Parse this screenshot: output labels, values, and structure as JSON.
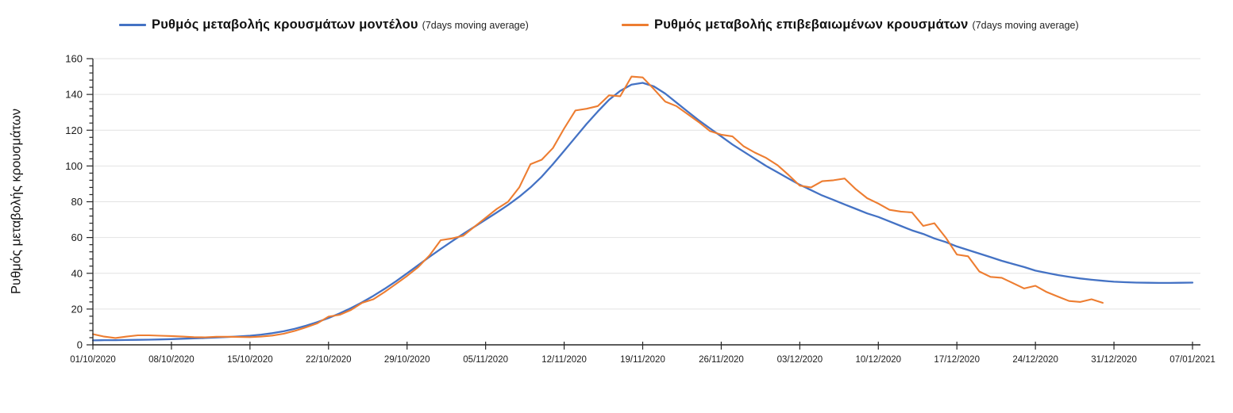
{
  "legend": {
    "items": [
      {
        "label": "Ρυθμός μεταβολής κρουσμάτων μοντέλου",
        "suffix": "(7days moving average)",
        "color": "#4472C4"
      },
      {
        "label": "Ρυθμός μεταβολής επιβεβαιωμένων κρουσμάτων",
        "suffix": "(7days moving average)",
        "color": "#ED7D31"
      }
    ]
  },
  "chart_data": {
    "type": "line",
    "title": "",
    "xlabel": "",
    "ylabel": "Ρυθμός μεταβολής κρουσμάτων",
    "ylim": [
      0,
      160
    ],
    "y_tick_step": 20,
    "y_minor_tick_step": 4,
    "y_tick_labels": [
      "0",
      "20",
      "40",
      "60",
      "80",
      "100",
      "120",
      "140",
      "160"
    ],
    "grid": "horizontal",
    "legend_position": "top",
    "x_tick_labels": [
      "01/10/2020",
      "08/10/2020",
      "15/10/2020",
      "22/10/2020",
      "29/10/2020",
      "05/11/2020",
      "12/11/2020",
      "19/11/2020",
      "26/11/2020",
      "03/12/2020",
      "10/12/2020",
      "17/12/2020",
      "24/12/2020",
      "31/12/2020",
      "07/01/2021"
    ],
    "x_tick_day_interval": 7,
    "x_total_days": 98,
    "series": [
      {
        "name": "Ρυθμός μεταβολής κρουσμάτων μοντέλου (7days moving average)",
        "color": "#4472C4",
        "start_day": 0,
        "values": [
          2.5,
          2.6,
          2.6,
          2.7,
          2.8,
          2.9,
          3.0,
          3.2,
          3.4,
          3.6,
          3.8,
          4.1,
          4.4,
          4.7,
          5.1,
          5.7,
          6.5,
          7.6,
          9.0,
          10.7,
          12.7,
          15.0,
          17.6,
          20.5,
          23.8,
          27.4,
          31.3,
          35.5,
          40.0,
          44.6,
          49.2,
          53.6,
          57.9,
          62.0,
          66.0,
          70.0,
          74.0,
          78.2,
          82.8,
          88.0,
          94.0,
          101.0,
          108.5,
          116.0,
          123.5,
          130.5,
          137.0,
          142.0,
          145.5,
          146.5,
          144.5,
          140.5,
          135.5,
          130.5,
          125.5,
          121.0,
          116.5,
          112.0,
          108.0,
          104.0,
          100.0,
          96.5,
          93.0,
          89.5,
          86.5,
          83.5,
          81.0,
          78.5,
          76.0,
          73.5,
          71.5,
          69.0,
          66.5,
          64.0,
          62.0,
          59.5,
          57.5,
          55.0,
          53.0,
          51.0,
          49.0,
          47.0,
          45.2,
          43.5,
          41.5,
          40.2,
          39.0,
          38.0,
          37.1,
          36.4,
          35.8,
          35.3,
          35.0,
          34.8,
          34.7,
          34.6,
          34.6,
          34.7,
          34.8
        ]
      },
      {
        "name": "Ρυθμός μεταβολής επιβεβαιωμένων κρουσμάτων (7days moving average)",
        "color": "#ED7D31",
        "start_day": 0,
        "values": [
          6.0,
          4.6,
          3.8,
          4.6,
          5.3,
          5.3,
          5.1,
          4.9,
          4.6,
          4.3,
          4.2,
          4.5,
          4.5,
          4.4,
          4.3,
          4.6,
          5.2,
          6.2,
          7.8,
          9.8,
          12.0,
          15.8,
          16.8,
          19.5,
          23.5,
          25.5,
          29.5,
          34.0,
          38.5,
          43.5,
          50.0,
          58.5,
          59.5,
          61.0,
          66.0,
          71.0,
          76.0,
          80.0,
          88.0,
          101.0,
          103.5,
          110.0,
          121.0,
          131.0,
          132.0,
          133.5,
          139.5,
          139.0,
          150.0,
          149.5,
          143.0,
          136.0,
          133.5,
          129.0,
          124.5,
          119.5,
          117.5,
          116.5,
          111.0,
          107.5,
          104.5,
          100.5,
          95.0,
          89.0,
          88.0,
          91.5,
          92.0,
          93.0,
          87.0,
          82.0,
          79.0,
          75.5,
          74.5,
          74.0,
          66.5,
          68.0,
          60.0,
          50.5,
          49.5,
          41.0,
          38.0,
          37.5,
          34.5,
          31.5,
          33.0,
          29.5,
          27.0,
          24.5,
          24.0,
          25.5,
          23.5
        ]
      }
    ],
    "colors": {
      "grid": "#E2E2E2",
      "axis": "#262626",
      "tick_text": "#1a1a1a"
    }
  }
}
